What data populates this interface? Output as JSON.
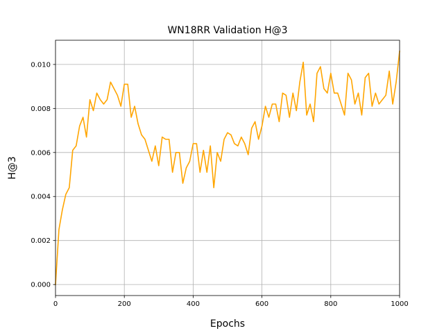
{
  "chart_data": {
    "type": "line",
    "title": "WN18RR Validation H@3",
    "xlabel": "Epochs",
    "ylabel": "H@3",
    "xlim": [
      0,
      1000
    ],
    "ylim": [
      -0.0005,
      0.0111
    ],
    "xticks": [
      0,
      200,
      400,
      600,
      800,
      1000
    ],
    "xtick_labels": [
      "0",
      "200",
      "400",
      "600",
      "800",
      "1000"
    ],
    "yticks": [
      0.0,
      0.002,
      0.004,
      0.006,
      0.008,
      0.01
    ],
    "ytick_labels": [
      "0.000",
      "0.002",
      "0.004",
      "0.006",
      "0.008",
      "0.010"
    ],
    "grid": true,
    "series": [
      {
        "color": "#FFA500",
        "x": [
          0,
          10,
          20,
          30,
          40,
          50,
          60,
          70,
          80,
          90,
          100,
          110,
          120,
          130,
          140,
          150,
          160,
          170,
          180,
          190,
          200,
          210,
          220,
          230,
          240,
          250,
          260,
          270,
          280,
          290,
          300,
          310,
          320,
          330,
          340,
          350,
          360,
          370,
          380,
          390,
          400,
          410,
          420,
          430,
          440,
          450,
          460,
          470,
          480,
          490,
          500,
          510,
          520,
          530,
          540,
          550,
          560,
          570,
          580,
          590,
          600,
          610,
          620,
          630,
          640,
          650,
          660,
          670,
          680,
          690,
          700,
          710,
          720,
          730,
          740,
          750,
          760,
          770,
          780,
          790,
          800,
          810,
          820,
          830,
          840,
          850,
          860,
          870,
          880,
          890,
          900,
          910,
          920,
          930,
          940,
          950,
          960,
          970,
          980,
          990,
          1000
        ],
        "values": [
          0.0,
          0.0025,
          0.0034,
          0.0041,
          0.0044,
          0.0061,
          0.0063,
          0.0072,
          0.0076,
          0.0067,
          0.0084,
          0.0079,
          0.0087,
          0.0084,
          0.0082,
          0.0084,
          0.0092,
          0.0089,
          0.0086,
          0.0081,
          0.0091,
          0.0091,
          0.0076,
          0.0081,
          0.0073,
          0.0068,
          0.0066,
          0.0061,
          0.0056,
          0.0063,
          0.0054,
          0.0067,
          0.0066,
          0.0066,
          0.0051,
          0.006,
          0.006,
          0.0046,
          0.0053,
          0.0056,
          0.0064,
          0.0064,
          0.0051,
          0.0061,
          0.0051,
          0.0063,
          0.0044,
          0.006,
          0.0056,
          0.0066,
          0.0069,
          0.0068,
          0.0064,
          0.0063,
          0.0067,
          0.0064,
          0.0059,
          0.0071,
          0.0074,
          0.0066,
          0.0072,
          0.0081,
          0.0076,
          0.0082,
          0.0082,
          0.0074,
          0.0087,
          0.0086,
          0.0076,
          0.0087,
          0.0079,
          0.0092,
          0.0101,
          0.0077,
          0.0082,
          0.0074,
          0.0096,
          0.0099,
          0.0089,
          0.0087,
          0.0096,
          0.0087,
          0.0087,
          0.0082,
          0.0077,
          0.0096,
          0.0093,
          0.0082,
          0.0087,
          0.0077,
          0.0094,
          0.0096,
          0.0081,
          0.0087,
          0.0082,
          0.0084,
          0.0086,
          0.0097,
          0.0082,
          0.0092,
          0.0106
        ]
      }
    ]
  }
}
